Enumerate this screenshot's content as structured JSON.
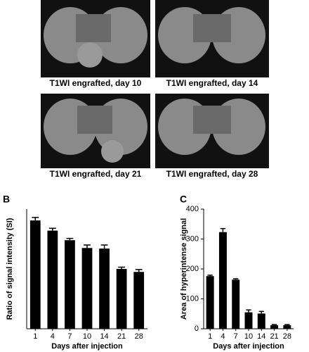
{
  "images": [
    {
      "caption": "T1WI engrafted, day 10"
    },
    {
      "caption": "T1WI engrafted, day 14"
    },
    {
      "caption": "T1WI engrafted, day 21"
    },
    {
      "caption": "T1WI engrafted, day 28"
    }
  ],
  "chart_data": [
    {
      "type": "bar",
      "panel_label": "B",
      "ylabel": "Ratio of signal intensity (SI)",
      "xlabel": "Days after injection",
      "categories": [
        "1",
        "4",
        "7",
        "10",
        "14",
        "21",
        "28"
      ],
      "values": [
        1.81,
        1.64,
        1.48,
        1.35,
        1.34,
        1.0,
        0.95
      ],
      "errors": [
        0.05,
        0.04,
        0.03,
        0.05,
        0.06,
        0.03,
        0.04
      ],
      "color": "#000000",
      "ylim": [
        0,
        2
      ]
    },
    {
      "type": "bar",
      "panel_label": "C",
      "ylabel": "Area of hyperintense signal",
      "xlabel": "Days after injection",
      "categories": [
        "1",
        "4",
        "7",
        "10",
        "14",
        "21",
        "28"
      ],
      "values": [
        176,
        323,
        164,
        55,
        51,
        12,
        12
      ],
      "errors": [
        3,
        12,
        3,
        8,
        7,
        2,
        2
      ],
      "color": "#000000",
      "ylim": [
        0,
        400
      ],
      "yticks": [
        0,
        100,
        200,
        300,
        400
      ]
    }
  ]
}
